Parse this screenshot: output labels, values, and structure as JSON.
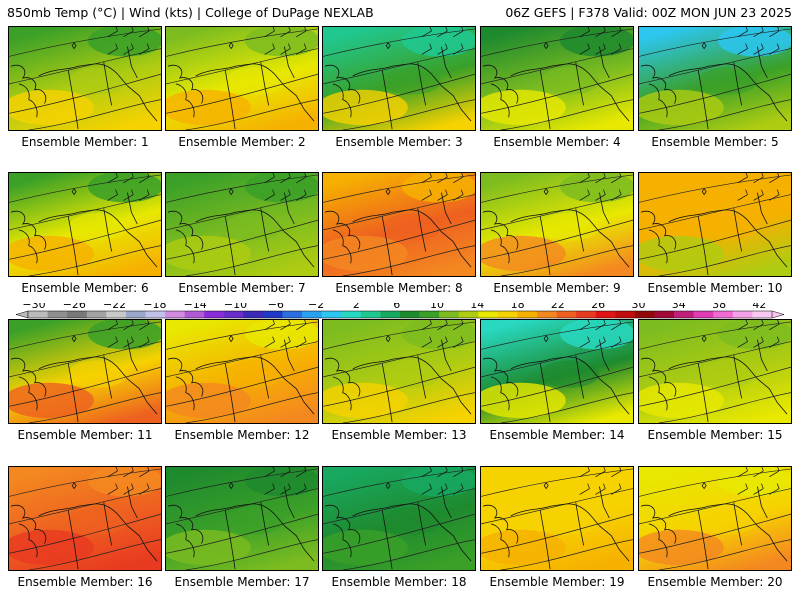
{
  "header": {
    "left": "850mb Temp (°C) | Wind (kts) | College of DuPage NEXLAB",
    "right": "06Z GEFS | F378 Valid: 00Z MON JUN 23 2025"
  },
  "colorbar": {
    "tick_labels": [
      "−30",
      "−26",
      "−22",
      "−18",
      "−14",
      "−10",
      "−6",
      "−2",
      "2",
      "6",
      "10",
      "14",
      "18",
      "22",
      "26",
      "30",
      "34",
      "38",
      "42"
    ],
    "colors": [
      "#bbbbbb",
      "#8f8f8f",
      "#787878",
      "#a3a3a3",
      "#c9c9c9",
      "#9aa7c9",
      "#c0c0e8",
      "#d08ae0",
      "#b25ad6",
      "#8a2bd8",
      "#6a2cc8",
      "#3a2ab4",
      "#2038c8",
      "#2a6ee0",
      "#2aa0f0",
      "#2cc6f0",
      "#28d8c0",
      "#20c890",
      "#18a860",
      "#1e8a2e",
      "#3aa028",
      "#7cbc20",
      "#aecc12",
      "#e8e800",
      "#f6d200",
      "#f6b000",
      "#f48820",
      "#ee6020",
      "#e83a20",
      "#e01414",
      "#c00c0c",
      "#900808",
      "#a00838",
      "#c0207a",
      "#e03cb4",
      "#f06ad2",
      "#f4a0e8",
      "#f8c8f2"
    ]
  },
  "members": [
    {
      "label": "Ensemble Member: 1",
      "scheme": "yellow-green",
      "top": "#3aa028",
      "mid": "#aecc12",
      "bot": "#f6d200"
    },
    {
      "label": "Ensemble Member: 2",
      "scheme": "yellow-orange",
      "top": "#7cbc20",
      "mid": "#e8e800",
      "bot": "#f6b000"
    },
    {
      "label": "Ensemble Member: 3",
      "scheme": "teal-green",
      "top": "#20c890",
      "mid": "#3aa028",
      "bot": "#f6d200"
    },
    {
      "label": "Ensemble Member: 4",
      "scheme": "green",
      "top": "#1e8a2e",
      "mid": "#7cbc20",
      "bot": "#e8e800"
    },
    {
      "label": "Ensemble Member: 5",
      "scheme": "cyan-green",
      "top": "#2cc6f0",
      "mid": "#3aa028",
      "bot": "#aecc12"
    },
    {
      "label": "Ensemble Member: 6",
      "scheme": "green-orange",
      "top": "#3aa028",
      "mid": "#e8e800",
      "bot": "#f6b000"
    },
    {
      "label": "Ensemble Member: 7",
      "scheme": "green-yellow",
      "top": "#3aa028",
      "mid": "#7cbc20",
      "bot": "#aecc12"
    },
    {
      "label": "Ensemble Member: 8",
      "scheme": "orange",
      "top": "#f6b000",
      "mid": "#ee6020",
      "bot": "#f48820"
    },
    {
      "label": "Ensemble Member: 9",
      "scheme": "green-orange",
      "top": "#7cbc20",
      "mid": "#e8e800",
      "bot": "#f48820"
    },
    {
      "label": "Ensemble Member: 10",
      "scheme": "orange-yellow",
      "top": "#f6b000",
      "mid": "#f6b000",
      "bot": "#aecc12"
    },
    {
      "label": "Ensemble Member: 11",
      "scheme": "green-orange",
      "top": "#3aa028",
      "mid": "#f6d200",
      "bot": "#ee6020"
    },
    {
      "label": "Ensemble Member: 12",
      "scheme": "yellow-orange",
      "top": "#e8e800",
      "mid": "#f6b000",
      "bot": "#f48820"
    },
    {
      "label": "Ensemble Member: 13",
      "scheme": "green-yellow",
      "top": "#7cbc20",
      "mid": "#aecc12",
      "bot": "#f6d200"
    },
    {
      "label": "Ensemble Member: 14",
      "scheme": "teal-green",
      "top": "#28d8c0",
      "mid": "#1e8a2e",
      "bot": "#e8e800"
    },
    {
      "label": "Ensemble Member: 15",
      "scheme": "green-yellow",
      "top": "#7cbc20",
      "mid": "#aecc12",
      "bot": "#e8e800"
    },
    {
      "label": "Ensemble Member: 16",
      "scheme": "orange-red",
      "top": "#f48820",
      "mid": "#ee6020",
      "bot": "#e83a20"
    },
    {
      "label": "Ensemble Member: 17",
      "scheme": "green",
      "top": "#1e8a2e",
      "mid": "#3aa028",
      "bot": "#7cbc20"
    },
    {
      "label": "Ensemble Member: 18",
      "scheme": "dark-green",
      "top": "#18a860",
      "mid": "#1e8a2e",
      "bot": "#3aa028"
    },
    {
      "label": "Ensemble Member: 19",
      "scheme": "yellow-orange",
      "top": "#f6d200",
      "mid": "#f6d200",
      "bot": "#f6b000"
    },
    {
      "label": "Ensemble Member: 20",
      "scheme": "yellow-orange",
      "top": "#e8e800",
      "mid": "#f6d200",
      "bot": "#f48820"
    }
  ]
}
